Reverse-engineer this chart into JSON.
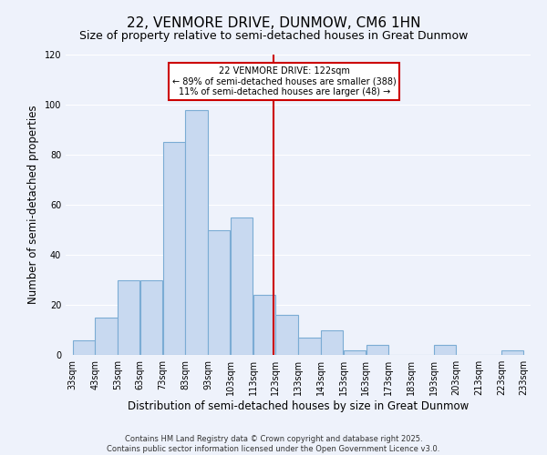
{
  "title": "22, VENMORE DRIVE, DUNMOW, CM6 1HN",
  "subtitle": "Size of property relative to semi-detached houses in Great Dunmow",
  "xlabel": "Distribution of semi-detached houses by size in Great Dunmow",
  "ylabel": "Number of semi-detached properties",
  "bin_edges": [
    33,
    43,
    53,
    63,
    73,
    83,
    93,
    103,
    113,
    123,
    133,
    143,
    153,
    163,
    173,
    183,
    193,
    203,
    213,
    223,
    233
  ],
  "bar_heights": [
    6,
    15,
    30,
    30,
    85,
    98,
    50,
    55,
    24,
    16,
    7,
    10,
    2,
    4,
    0,
    0,
    4,
    0,
    0,
    2
  ],
  "bar_color": "#c8d9f0",
  "bar_edge_color": "#7bacd4",
  "redline_x": 122,
  "ylim": [
    0,
    120
  ],
  "yticks": [
    0,
    20,
    40,
    60,
    80,
    100,
    120
  ],
  "annotation_title": "22 VENMORE DRIVE: 122sqm",
  "annotation_line1": "← 89% of semi-detached houses are smaller (388)",
  "annotation_line2": "11% of semi-detached houses are larger (48) →",
  "annotation_box_color": "#ffffff",
  "annotation_box_edge": "#cc0000",
  "footer1": "Contains HM Land Registry data © Crown copyright and database right 2025.",
  "footer2": "Contains public sector information licensed under the Open Government Licence v3.0.",
  "background_color": "#eef2fb",
  "grid_color": "#ffffff",
  "title_fontsize": 11,
  "subtitle_fontsize": 9,
  "tick_label_fontsize": 7,
  "axis_label_fontsize": 8.5,
  "footer_fontsize": 6
}
